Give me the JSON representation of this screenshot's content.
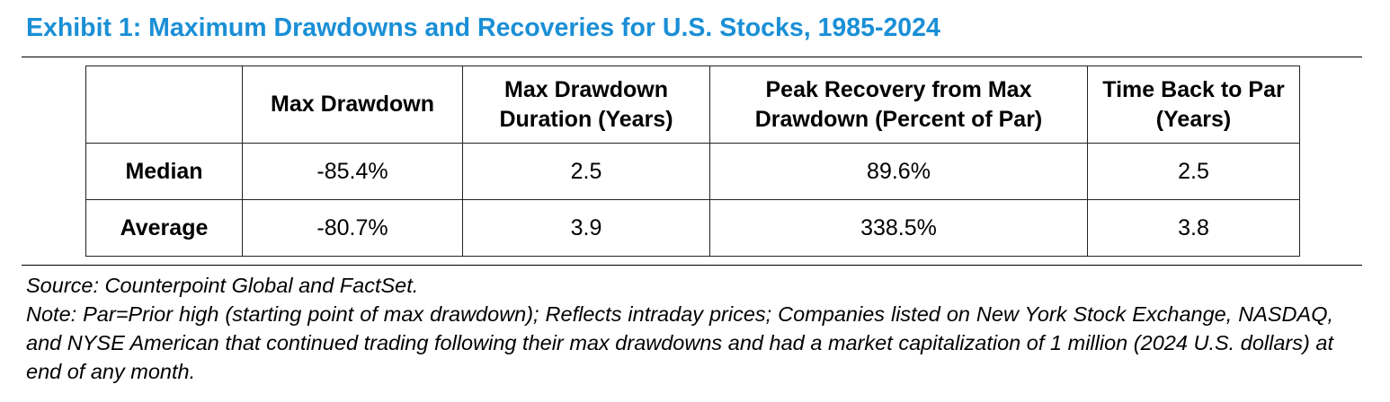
{
  "title": "Exhibit 1: Maximum Drawdowns and Recoveries for U.S. Stocks, 1985-2024",
  "colors": {
    "title": "#1a8fd6",
    "rule": "#000000",
    "grid": "#222222"
  },
  "table": {
    "headers": [
      "",
      "Max Drawdown",
      "Max Drawdown Duration (Years)",
      "Peak Recovery from Max Drawdown (Percent of Par)",
      "Time Back to Par (Years)"
    ],
    "rows": [
      {
        "label": "Median",
        "values": [
          "-85.4%",
          "2.5",
          "89.6%",
          "2.5"
        ]
      },
      {
        "label": "Average",
        "values": [
          "-80.7%",
          "3.9",
          "338.5%",
          "3.8"
        ]
      }
    ]
  },
  "source": "Source: Counterpoint Global and FactSet.",
  "note": "Note: Par=Prior high (starting point of max drawdown); Reflects intraday prices; Companies listed on New York Stock Exchange, NASDAQ, and NYSE American that continued trading following their max drawdowns and had a market capitalization of 1 million (2024 U.S. dollars) at end of any month."
}
